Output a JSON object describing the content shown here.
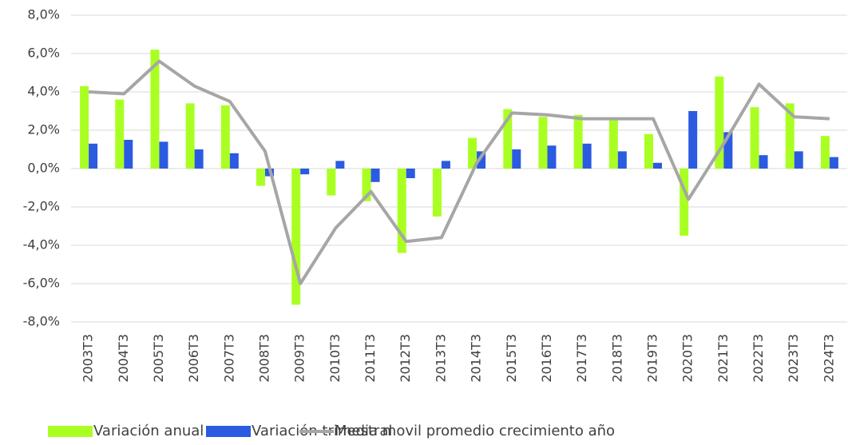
{
  "chart_data": {
    "type": "bar",
    "categories": [
      "2003T3",
      "2004T3",
      "2005T3",
      "2006T3",
      "2007T3",
      "2008T3",
      "2009T3",
      "2010T3",
      "2011T3",
      "2012T3",
      "2013T3",
      "2014T3",
      "2015T3",
      "2016T3",
      "2017T3",
      "2018T3",
      "2019T3",
      "2020T3",
      "2021T3",
      "2022T3",
      "2023T3",
      "2024T3"
    ],
    "series": [
      {
        "name": "Variación anual",
        "color": "#aaff22",
        "values": [
          4.3,
          3.6,
          6.2,
          3.4,
          3.3,
          -0.9,
          -7.1,
          -1.4,
          -1.7,
          -4.4,
          -2.5,
          1.6,
          3.1,
          2.7,
          2.8,
          2.6,
          1.8,
          -3.5,
          4.8,
          3.2,
          3.4,
          1.7
        ]
      },
      {
        "name": "Variación trimestral",
        "color": "#2b5be0",
        "values": [
          1.3,
          1.5,
          1.4,
          1.0,
          0.8,
          -0.4,
          -0.3,
          0.4,
          -0.7,
          -0.5,
          0.4,
          0.9,
          1.0,
          1.2,
          1.3,
          0.9,
          0.3,
          3.0,
          1.9,
          0.7,
          0.9,
          0.6
        ]
      },
      {
        "name": "Media movil promedio crecimiento año",
        "type": "line",
        "color": "#a6a6a6",
        "values": [
          4.0,
          3.9,
          5.6,
          4.3,
          3.5,
          0.9,
          -6.0,
          -3.1,
          -1.2,
          -3.8,
          -3.6,
          0.3,
          2.9,
          2.8,
          2.6,
          2.6,
          2.6,
          -1.6,
          1.3,
          4.4,
          2.7,
          2.6
        ]
      }
    ],
    "ylim": [
      -8,
      8
    ],
    "yticks": [
      {
        "value": -8,
        "label": "-8,0%"
      },
      {
        "value": -6,
        "label": "-6,0%"
      },
      {
        "value": -4,
        "label": "-4,0%"
      },
      {
        "value": -2,
        "label": "-2,0%"
      },
      {
        "value": 0,
        "label": "0,0%"
      },
      {
        "value": 2,
        "label": "2,0%"
      },
      {
        "value": 4,
        "label": "4,0%"
      },
      {
        "value": 6,
        "label": "6,0%"
      },
      {
        "value": 8,
        "label": "8,0%"
      }
    ],
    "grid": true,
    "legend": "bottom"
  }
}
